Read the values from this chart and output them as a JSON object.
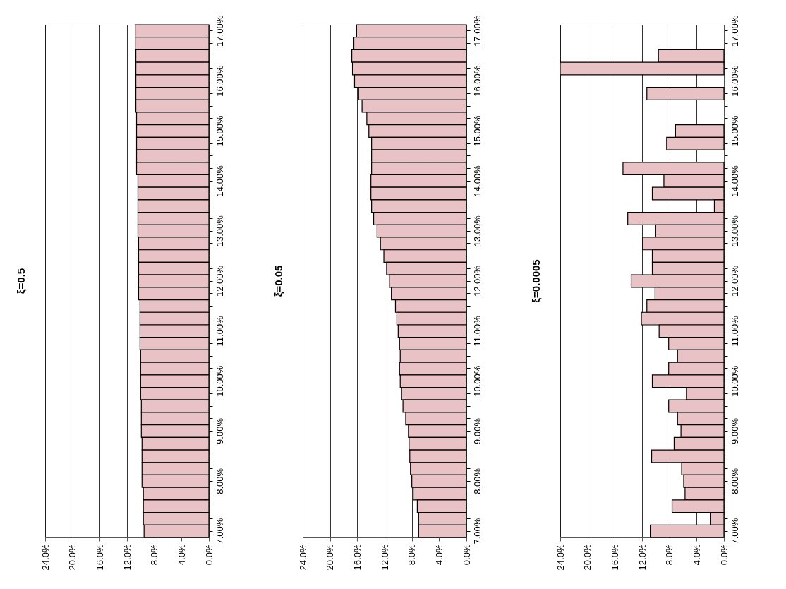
{
  "chart_data": [
    {
      "type": "bar",
      "orientation": "horizontal",
      "title": "ξ=0.5",
      "color": "#e8c2c4",
      "grid": "x",
      "categories": [
        "17.00%",
        null,
        null,
        null,
        "16.00%",
        null,
        null,
        null,
        "15.00%",
        null,
        null,
        null,
        "14.00%",
        null,
        null,
        null,
        "13.00%",
        null,
        null,
        null,
        "12.00%",
        null,
        null,
        null,
        "11.00%",
        null,
        null,
        null,
        "10.00%",
        null,
        null,
        null,
        "9.00%",
        null,
        null,
        null,
        "8.00%",
        null,
        null,
        null,
        "7.00%"
      ],
      "values": [
        10.8,
        10.8,
        10.7,
        10.7,
        10.7,
        10.7,
        10.7,
        10.6,
        10.6,
        10.6,
        10.6,
        10.6,
        10.4,
        10.4,
        10.4,
        10.4,
        10.4,
        10.3,
        10.3,
        10.3,
        10.3,
        10.3,
        10.1,
        10.1,
        10.1,
        10.1,
        10.0,
        10.0,
        10.0,
        10.0,
        9.9,
        9.9,
        9.9,
        9.8,
        9.8,
        9.8,
        9.8,
        9.6,
        9.6,
        9.6,
        9.5
      ],
      "xlim": [
        24,
        0
      ],
      "xticks": [
        {
          "value": 24,
          "label": "24.0%"
        },
        {
          "value": 20,
          "label": "20.0%"
        },
        {
          "value": 16,
          "label": "16.0%"
        },
        {
          "value": 12,
          "label": "12.0%"
        },
        {
          "value": 8,
          "label": "8.0%"
        },
        {
          "value": 4,
          "label": "4.0%"
        },
        {
          "value": 0,
          "label": "0.0%"
        }
      ]
    },
    {
      "type": "bar",
      "orientation": "horizontal",
      "title": "ξ=0.05",
      "color": "#e8c2c4",
      "grid": "x",
      "categories": [
        "17.00%",
        null,
        null,
        null,
        "16.00%",
        null,
        null,
        null,
        "15.00%",
        null,
        null,
        null,
        "14.00%",
        null,
        null,
        null,
        "13.00%",
        null,
        null,
        null,
        "12.00%",
        null,
        null,
        null,
        "11.00%",
        null,
        null,
        null,
        "10.00%",
        null,
        null,
        null,
        "9.00%",
        null,
        null,
        null,
        "8.00%",
        null,
        null,
        null,
        "7.00%"
      ],
      "values": [
        16.1,
        16.5,
        16.8,
        16.7,
        16.4,
        15.8,
        15.3,
        14.6,
        14.3,
        13.9,
        13.9,
        13.9,
        14.0,
        14.0,
        13.9,
        13.6,
        13.1,
        12.6,
        12.1,
        11.7,
        11.3,
        11.0,
        10.4,
        10.2,
        10.0,
        9.8,
        9.7,
        9.8,
        9.7,
        9.5,
        9.3,
        8.9,
        8.5,
        8.4,
        8.3,
        8.2,
        8.0,
        7.8,
        7.2,
        7.0,
        7.0
      ],
      "xlim": [
        24,
        0
      ],
      "xticks": [
        {
          "value": 24,
          "label": "24.0%"
        },
        {
          "value": 20,
          "label": "20.0%"
        },
        {
          "value": 16,
          "label": "16.0%"
        },
        {
          "value": 12,
          "label": "12.0%"
        },
        {
          "value": 8,
          "label": "8.0%"
        },
        {
          "value": 4,
          "label": "4.0%"
        },
        {
          "value": 0,
          "label": "0.0%"
        }
      ]
    },
    {
      "type": "bar",
      "orientation": "horizontal",
      "title": "ξ=0.0005",
      "color": "#e8c2c4",
      "grid": "x",
      "categories": [
        "17.00%",
        null,
        null,
        null,
        "16.00%",
        null,
        null,
        null,
        "15.00%",
        null,
        null,
        null,
        "14.00%",
        null,
        null,
        null,
        "13.00%",
        null,
        null,
        null,
        "12.00%",
        null,
        null,
        null,
        "11.00%",
        null,
        null,
        null,
        "10.00%",
        null,
        null,
        null,
        "9.00%",
        null,
        null,
        null,
        "8.00%",
        null,
        null,
        null,
        "7.00%"
      ],
      "values": [
        0,
        0,
        9.6,
        24,
        0,
        11.3,
        0,
        0,
        7.1,
        8.4,
        0,
        14.8,
        8.8,
        10.5,
        1.4,
        14.1,
        10.0,
        11.9,
        10.5,
        10.5,
        13.6,
        10.1,
        11.3,
        12.1,
        9.5,
        8.1,
        6.8,
        8.1,
        10.5,
        5.5,
        8.1,
        6.8,
        6.3,
        7.3,
        10.6,
        6.2,
        5.9,
        5.7,
        7.6,
        2.0,
        10.8
      ],
      "xlim": [
        24,
        0
      ],
      "xticks": [
        {
          "value": 24,
          "label": "24.0%"
        },
        {
          "value": 20,
          "label": "20.0%"
        },
        {
          "value": 16,
          "label": "16.0%"
        },
        {
          "value": 12,
          "label": "12.0%"
        },
        {
          "value": 8,
          "label": "8.0%"
        },
        {
          "value": 4,
          "label": "4.0%"
        },
        {
          "value": 0,
          "label": "0.0%"
        }
      ]
    }
  ]
}
